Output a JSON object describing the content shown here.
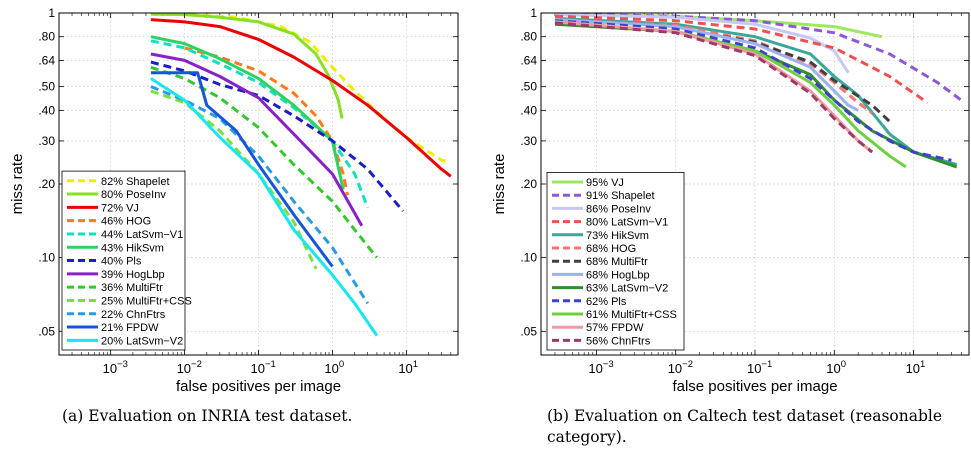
{
  "chart_data": [
    {
      "type": "line",
      "caption": "(a) Evaluation on INRIA test dataset.",
      "xlabel": "false positives per image",
      "ylabel": "miss rate",
      "xscale": "log",
      "yscale": "log",
      "xlim": [
        0.0002,
        50
      ],
      "ylim": [
        0.04,
        1
      ],
      "xticks": [
        {
          "v": 0.001,
          "b": "10",
          "e": "−3"
        },
        {
          "v": 0.01,
          "b": "10",
          "e": "−2"
        },
        {
          "v": 0.1,
          "b": "10",
          "e": "−1"
        },
        {
          "v": 1,
          "b": "10",
          "e": "0"
        },
        {
          "v": 10,
          "b": "10",
          "e": "1"
        }
      ],
      "yticks": [
        {
          "v": 1,
          "label": "1"
        },
        {
          "v": 0.8,
          "label": ".80"
        },
        {
          "v": 0.64,
          "label": ".64"
        },
        {
          "v": 0.5,
          "label": ".50"
        },
        {
          "v": 0.4,
          "label": ".40"
        },
        {
          "v": 0.3,
          "label": ".30"
        },
        {
          "v": 0.2,
          "label": ".20"
        },
        {
          "v": 0.1,
          "label": ".10"
        },
        {
          "v": 0.05,
          "label": ".05"
        }
      ],
      "grid": true,
      "legend_position": "bottom-left",
      "series": [
        {
          "name": "82% Shapelet",
          "color": "#eded00",
          "dash": true,
          "points": [
            [
              0.0035,
              0.99
            ],
            [
              0.01,
              0.985
            ],
            [
              0.05,
              0.96
            ],
            [
              0.2,
              0.88
            ],
            [
              0.5,
              0.76
            ],
            [
              1,
              0.6
            ],
            [
              2,
              0.48
            ],
            [
              5,
              0.37
            ],
            [
              10,
              0.31
            ],
            [
              30,
              0.25
            ],
            [
              40,
              0.245
            ]
          ]
        },
        {
          "name": "80% PoseInv",
          "color": "#88e024",
          "dash": false,
          "points": [
            [
              0.0035,
              0.99
            ],
            [
              0.01,
              0.985
            ],
            [
              0.03,
              0.96
            ],
            [
              0.1,
              0.92
            ],
            [
              0.3,
              0.82
            ],
            [
              0.6,
              0.68
            ],
            [
              0.9,
              0.55
            ],
            [
              1.2,
              0.44
            ],
            [
              1.35,
              0.37
            ]
          ]
        },
        {
          "name": "72% VJ",
          "color": "#ee0000",
          "dash": false,
          "points": [
            [
              0.0035,
              0.94
            ],
            [
              0.01,
              0.92
            ],
            [
              0.03,
              0.88
            ],
            [
              0.1,
              0.78
            ],
            [
              0.3,
              0.66
            ],
            [
              1,
              0.53
            ],
            [
              3,
              0.42
            ],
            [
              10,
              0.31
            ],
            [
              30,
              0.23
            ],
            [
              40,
              0.215
            ]
          ]
        },
        {
          "name": "46% HOG",
          "color": "#ff7a1a",
          "dash": true,
          "points": [
            [
              0.01,
              0.72
            ],
            [
              0.03,
              0.66
            ],
            [
              0.1,
              0.58
            ],
            [
              0.3,
              0.47
            ],
            [
              0.6,
              0.38
            ],
            [
              1,
              0.3
            ],
            [
              1.4,
              0.22
            ],
            [
              1.6,
              0.18
            ]
          ]
        },
        {
          "name": "44% LatSvm−V1",
          "color": "#11e0c0",
          "dash": true,
          "points": [
            [
              0.0035,
              0.77
            ],
            [
              0.01,
              0.72
            ],
            [
              0.03,
              0.62
            ],
            [
              0.1,
              0.52
            ],
            [
              0.3,
              0.41
            ],
            [
              1,
              0.3
            ],
            [
              2,
              0.22
            ],
            [
              3,
              0.16
            ]
          ]
        },
        {
          "name": "43% HikSvm",
          "color": "#2ed260",
          "dash": false,
          "points": [
            [
              0.0035,
              0.8
            ],
            [
              0.01,
              0.75
            ],
            [
              0.03,
              0.65
            ],
            [
              0.1,
              0.54
            ],
            [
              0.3,
              0.42
            ],
            [
              1,
              0.3
            ],
            [
              1.4,
              0.19
            ]
          ]
        },
        {
          "name": "40% Pls",
          "color": "#1c1cc8",
          "dash": true,
          "points": [
            [
              0.0035,
              0.63
            ],
            [
              0.01,
              0.58
            ],
            [
              0.03,
              0.51
            ],
            [
              0.1,
              0.46
            ],
            [
              0.3,
              0.38
            ],
            [
              1,
              0.3
            ],
            [
              3,
              0.23
            ],
            [
              9,
              0.155
            ]
          ]
        },
        {
          "name": "39% HogLbp",
          "color": "#8822c8",
          "dash": false,
          "points": [
            [
              0.0035,
              0.68
            ],
            [
              0.01,
              0.64
            ],
            [
              0.03,
              0.55
            ],
            [
              0.1,
              0.45
            ],
            [
              0.3,
              0.32
            ],
            [
              1,
              0.22
            ],
            [
              2.5,
              0.135
            ]
          ]
        },
        {
          "name": "36% MultiFtr",
          "color": "#33c92d",
          "dash": true,
          "points": [
            [
              0.0035,
              0.6
            ],
            [
              0.01,
              0.54
            ],
            [
              0.03,
              0.45
            ],
            [
              0.1,
              0.34
            ],
            [
              0.3,
              0.24
            ],
            [
              1,
              0.17
            ],
            [
              2,
              0.13
            ],
            [
              4,
              0.1
            ]
          ]
        },
        {
          "name": "25% MultiFtr+CSS",
          "color": "#79e040",
          "dash": true,
          "points": [
            [
              0.0035,
              0.48
            ],
            [
              0.01,
              0.43
            ],
            [
              0.03,
              0.33
            ],
            [
              0.1,
              0.22
            ],
            [
              0.3,
              0.14
            ],
            [
              0.6,
              0.09
            ]
          ]
        },
        {
          "name": "22% ChnFtrs",
          "color": "#2a9be0",
          "dash": true,
          "points": [
            [
              0.0035,
              0.5
            ],
            [
              0.01,
              0.44
            ],
            [
              0.03,
              0.37
            ],
            [
              0.1,
              0.26
            ],
            [
              0.3,
              0.17
            ],
            [
              1,
              0.11
            ],
            [
              3,
              0.065
            ]
          ]
        },
        {
          "name": "21% FPDW",
          "color": "#1555d8",
          "dash": false,
          "points": [
            [
              0.0035,
              0.57
            ],
            [
              0.015,
              0.57
            ],
            [
              0.02,
              0.42
            ],
            [
              0.05,
              0.33
            ],
            [
              0.1,
              0.24
            ],
            [
              0.3,
              0.15
            ],
            [
              1,
              0.092
            ]
          ]
        },
        {
          "name": "20% LatSvm−V2",
          "color": "#18e6ee",
          "dash": false,
          "points": [
            [
              0.0035,
              0.54
            ],
            [
              0.01,
              0.44
            ],
            [
              0.03,
              0.31
            ],
            [
              0.1,
              0.22
            ],
            [
              0.3,
              0.13
            ],
            [
              1,
              0.085
            ],
            [
              2,
              0.065
            ],
            [
              4,
              0.048
            ]
          ]
        }
      ]
    },
    {
      "type": "line",
      "caption": "(b) Evaluation on Caltech test dataset (reasonable category).",
      "xlabel": "false positives per image",
      "ylabel": "miss rate",
      "xscale": "log",
      "yscale": "log",
      "xlim": [
        0.0002,
        50
      ],
      "ylim": [
        0.04,
        1
      ],
      "xticks": [
        {
          "v": 0.001,
          "b": "10",
          "e": "−3"
        },
        {
          "v": 0.01,
          "b": "10",
          "e": "−2"
        },
        {
          "v": 0.1,
          "b": "10",
          "e": "−1"
        },
        {
          "v": 1,
          "b": "10",
          "e": "0"
        },
        {
          "v": 10,
          "b": "10",
          "e": "1"
        }
      ],
      "yticks": [
        {
          "v": 1,
          "label": "1"
        },
        {
          "v": 0.8,
          "label": ".80"
        },
        {
          "v": 0.64,
          "label": ".64"
        },
        {
          "v": 0.5,
          "label": ".50"
        },
        {
          "v": 0.4,
          "label": ".40"
        },
        {
          "v": 0.3,
          "label": ".30"
        },
        {
          "v": 0.2,
          "label": ".20"
        },
        {
          "v": 0.1,
          "label": ".10"
        },
        {
          "v": 0.05,
          "label": ".05"
        }
      ],
      "grid": true,
      "legend_position": "bottom-left",
      "series": [
        {
          "name": "95% VJ",
          "color": "#9ee860",
          "dash": false,
          "points": [
            [
              0.0003,
              0.99
            ],
            [
              0.01,
              0.97
            ],
            [
              0.1,
              0.93
            ],
            [
              1,
              0.88
            ],
            [
              4,
              0.8
            ]
          ]
        },
        {
          "name": "91% Shapelet",
          "color": "#8a5ad8",
          "dash": true,
          "points": [
            [
              0.0003,
              0.99
            ],
            [
              0.01,
              0.97
            ],
            [
              0.1,
              0.93
            ],
            [
              1,
              0.83
            ],
            [
              5,
              0.68
            ],
            [
              20,
              0.52
            ],
            [
              40,
              0.44
            ]
          ]
        },
        {
          "name": "86% PoseInv",
          "color": "#c8c8f4",
          "dash": false,
          "points": [
            [
              0.0003,
              0.985
            ],
            [
              0.01,
              0.96
            ],
            [
              0.1,
              0.9
            ],
            [
              0.5,
              0.79
            ],
            [
              1,
              0.7
            ],
            [
              1.5,
              0.57
            ]
          ]
        },
        {
          "name": "80% LatSvm−V1",
          "color": "#f05050",
          "dash": true,
          "points": [
            [
              0.0003,
              0.97
            ],
            [
              0.01,
              0.93
            ],
            [
              0.1,
              0.86
            ],
            [
              1,
              0.72
            ],
            [
              5,
              0.55
            ],
            [
              15,
              0.43
            ]
          ]
        },
        {
          "name": "73% HikSvm",
          "color": "#3aa898",
          "dash": false,
          "points": [
            [
              0.0003,
              0.95
            ],
            [
              0.01,
              0.9
            ],
            [
              0.1,
              0.8
            ],
            [
              0.5,
              0.68
            ],
            [
              1,
              0.55
            ],
            [
              2,
              0.46
            ],
            [
              5,
              0.32
            ],
            [
              10,
              0.27
            ],
            [
              35,
              0.24
            ]
          ]
        },
        {
          "name": "68% HOG",
          "color": "#ff7070",
          "dash": true,
          "points": [
            [
              0.0003,
              0.94
            ],
            [
              0.01,
              0.89
            ],
            [
              0.1,
              0.77
            ],
            [
              0.5,
              0.62
            ],
            [
              1,
              0.52
            ],
            [
              2,
              0.43
            ],
            [
              3,
              0.39
            ]
          ]
        },
        {
          "name": "68% MultiFtr",
          "color": "#404040",
          "dash": true,
          "points": [
            [
              0.0003,
              0.93
            ],
            [
              0.01,
              0.87
            ],
            [
              0.1,
              0.76
            ],
            [
              0.5,
              0.63
            ],
            [
              1,
              0.53
            ],
            [
              3,
              0.42
            ],
            [
              5,
              0.36
            ]
          ]
        },
        {
          "name": "68% HogLbp",
          "color": "#9fb0f0",
          "dash": false,
          "points": [
            [
              0.0003,
              0.94
            ],
            [
              0.01,
              0.88
            ],
            [
              0.1,
              0.75
            ],
            [
              0.5,
              0.6
            ],
            [
              1,
              0.48
            ],
            [
              1.5,
              0.42
            ],
            [
              2,
              0.4
            ]
          ]
        },
        {
          "name": "63% LatSvm−V2",
          "color": "#2f8e2f",
          "dash": false,
          "points": [
            [
              0.0003,
              0.9
            ],
            [
              0.01,
              0.84
            ],
            [
              0.1,
              0.7
            ],
            [
              0.5,
              0.56
            ],
            [
              1,
              0.44
            ],
            [
              3,
              0.33
            ],
            [
              10,
              0.27
            ],
            [
              35,
              0.235
            ]
          ]
        },
        {
          "name": "62% Pls",
          "color": "#4040d0",
          "dash": true,
          "points": [
            [
              0.0003,
              0.93
            ],
            [
              0.01,
              0.86
            ],
            [
              0.1,
              0.72
            ],
            [
              0.5,
              0.54
            ],
            [
              1,
              0.44
            ],
            [
              2,
              0.36
            ],
            [
              5,
              0.3
            ],
            [
              10,
              0.27
            ],
            [
              30,
              0.25
            ]
          ]
        },
        {
          "name": "61% MultiFtr+CSS",
          "color": "#6ed040",
          "dash": false,
          "points": [
            [
              0.0003,
              0.92
            ],
            [
              0.01,
              0.84
            ],
            [
              0.1,
              0.7
            ],
            [
              0.5,
              0.52
            ],
            [
              1,
              0.42
            ],
            [
              2,
              0.33
            ],
            [
              5,
              0.26
            ],
            [
              8,
              0.235
            ]
          ]
        },
        {
          "name": "57% FPDW",
          "color": "#f09aa0",
          "dash": false,
          "points": [
            [
              0.0003,
              0.92
            ],
            [
              0.01,
              0.84
            ],
            [
              0.1,
              0.68
            ],
            [
              0.5,
              0.48
            ],
            [
              1,
              0.38
            ],
            [
              2,
              0.3
            ],
            [
              3,
              0.27
            ]
          ]
        },
        {
          "name": "56% ChnFtrs",
          "color": "#9c3a6a",
          "dash": true,
          "points": [
            [
              0.0003,
              0.91
            ],
            [
              0.01,
              0.83
            ],
            [
              0.1,
              0.67
            ],
            [
              0.5,
              0.47
            ],
            [
              1,
              0.37
            ],
            [
              2,
              0.3
            ],
            [
              3,
              0.27
            ]
          ]
        }
      ]
    }
  ]
}
